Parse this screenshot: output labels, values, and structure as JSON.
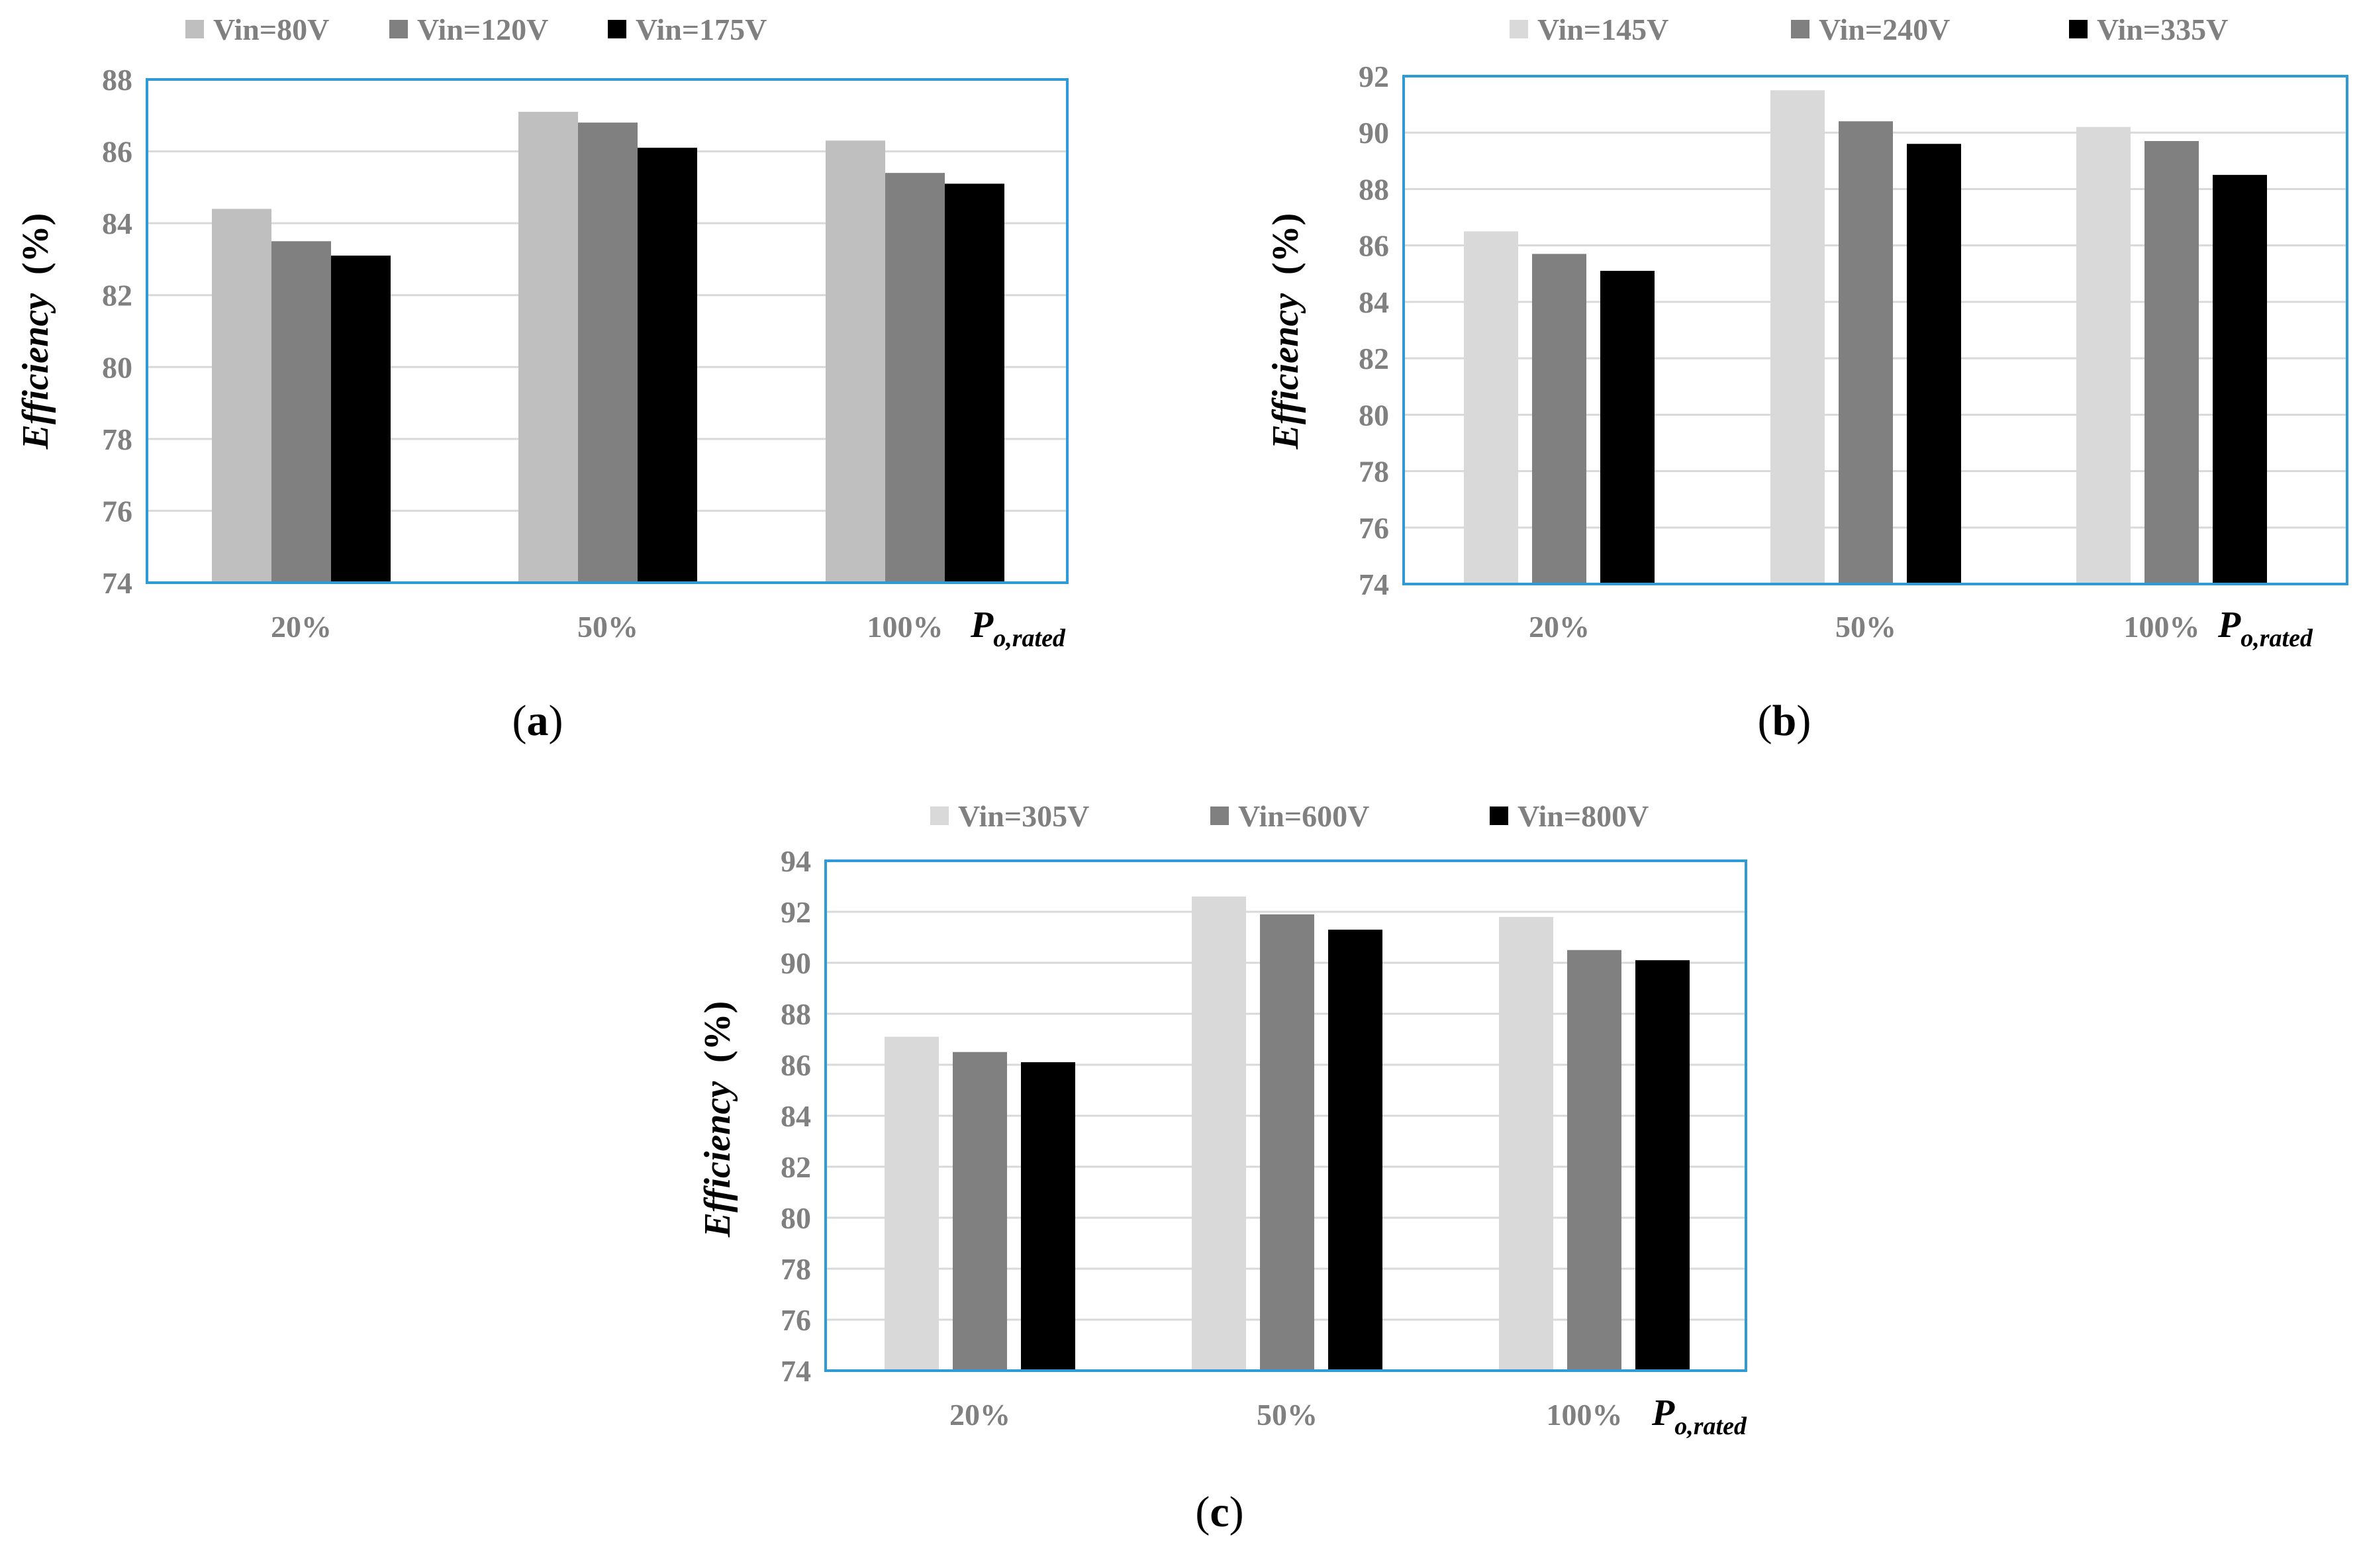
{
  "chart_data": [
    {
      "type": "bar",
      "panel_label": "a",
      "ylabel_text": "Efficiency",
      "ylabel_unit": "(%)",
      "ylim": [
        74,
        88
      ],
      "yticks": [
        "74",
        "76",
        "78",
        "80",
        "82",
        "84",
        "86",
        "88"
      ],
      "categories": [
        "20%",
        "50%",
        "100%"
      ],
      "x_suffix_main": "P",
      "x_suffix_sub": "o,rated",
      "series": [
        {
          "name": "Vin=80V",
          "color": "#bfbfbf",
          "values": [
            84.4,
            87.1,
            86.3
          ]
        },
        {
          "name": "Vin=120V",
          "color": "#808080",
          "values": [
            83.5,
            86.8,
            85.4
          ]
        },
        {
          "name": "Vin=175V",
          "color": "#000000",
          "values": [
            83.1,
            86.1,
            85.1
          ]
        }
      ]
    },
    {
      "type": "bar",
      "panel_label": "b",
      "ylabel_text": "Efficiency",
      "ylabel_unit": "(%)",
      "ylim": [
        74,
        92
      ],
      "yticks": [
        "74",
        "76",
        "78",
        "80",
        "82",
        "84",
        "86",
        "88",
        "90",
        "92"
      ],
      "categories": [
        "20%",
        "50%",
        "100%"
      ],
      "x_suffix_main": "P",
      "x_suffix_sub": "o,rated",
      "series": [
        {
          "name": "Vin=145V",
          "color": "#d9d9d9",
          "values": [
            86.5,
            91.5,
            90.2
          ]
        },
        {
          "name": "Vin=240V",
          "color": "#808080",
          "values": [
            85.7,
            90.4,
            89.7
          ]
        },
        {
          "name": "Vin=335V",
          "color": "#000000",
          "values": [
            85.1,
            89.6,
            88.5
          ]
        }
      ]
    },
    {
      "type": "bar",
      "panel_label": "c",
      "ylabel_text": "Efficiency",
      "ylabel_unit": "(%)",
      "ylim": [
        74,
        94
      ],
      "yticks": [
        "74",
        "76",
        "78",
        "80",
        "82",
        "84",
        "86",
        "88",
        "90",
        "92",
        "94"
      ],
      "categories": [
        "20%",
        "50%",
        "100%"
      ],
      "x_suffix_main": "P",
      "x_suffix_sub": "o,rated",
      "series": [
        {
          "name": "Vin=305V",
          "color": "#d9d9d9",
          "values": [
            87.1,
            92.6,
            91.8
          ]
        },
        {
          "name": "Vin=600V",
          "color": "#808080",
          "values": [
            86.5,
            91.9,
            90.5
          ]
        },
        {
          "name": "Vin=800V",
          "color": "#000000",
          "values": [
            86.1,
            91.3,
            90.1
          ]
        }
      ]
    }
  ],
  "style": {
    "frame_color": "#2e9bd6",
    "grid_color": "#d9d9d9",
    "axis_color": "#bfbfbf"
  }
}
